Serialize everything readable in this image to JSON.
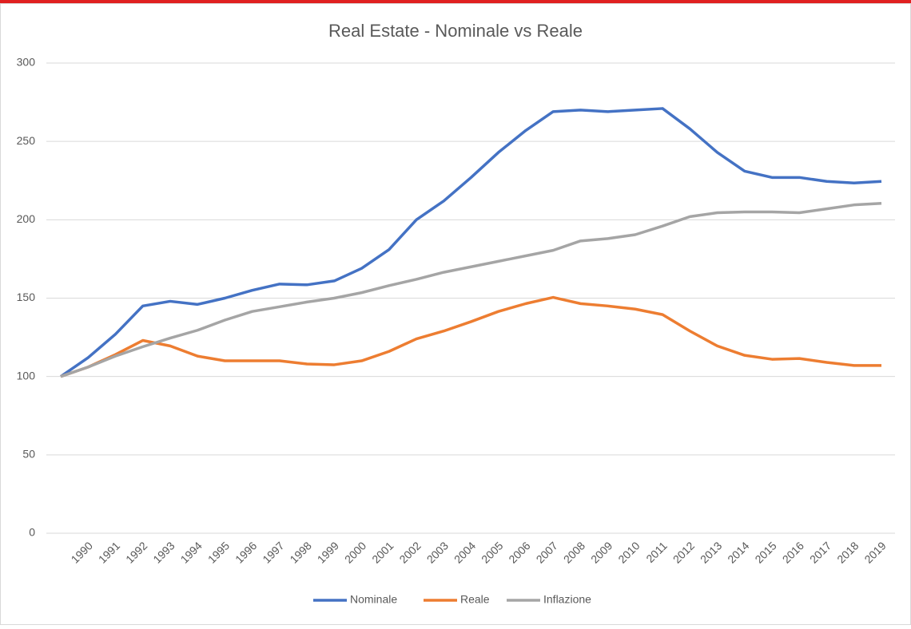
{
  "chart_data": {
    "type": "line",
    "title": "Real Estate - Nominale vs Reale",
    "categories": [
      null,
      "1990",
      "1991",
      "1992",
      "1993",
      "1994",
      "1995",
      "1996",
      "1997",
      "1998",
      "1999",
      "2000",
      "2001",
      "2002",
      "2003",
      "2004",
      "2005",
      "2006",
      "2007",
      "2008",
      "2009",
      "2010",
      "2011",
      "2012",
      "2013",
      "2014",
      "2015",
      "2016",
      "2017",
      "2018",
      "2019"
    ],
    "series": [
      {
        "name": "Nominale",
        "color": "#4472c4",
        "values": [
          100,
          112,
          127,
          145,
          148,
          146,
          150,
          155,
          159,
          158.5,
          161,
          169,
          181,
          200,
          212,
          227,
          243,
          257,
          269,
          270,
          269,
          270,
          271,
          258,
          243,
          231,
          227,
          227,
          224.5,
          223.5,
          224.5
        ]
      },
      {
        "name": "Reale",
        "color": "#ed7d31",
        "values": [
          100,
          106,
          114,
          123,
          119.5,
          113,
          110,
          110,
          110,
          108,
          107.5,
          110,
          116,
          124,
          129,
          135,
          141.5,
          146.5,
          150.5,
          146.5,
          145,
          143,
          139.5,
          129,
          119.5,
          113.5,
          111,
          111.5,
          109,
          107,
          107
        ]
      },
      {
        "name": "Inflazione",
        "color": "#a5a5a5",
        "values": [
          100,
          106,
          113,
          119,
          124.5,
          129.5,
          136,
          141.5,
          144.5,
          147.5,
          150,
          153.5,
          158,
          162,
          166.5,
          170,
          173.5,
          177,
          180.5,
          186.5,
          188,
          190.5,
          196,
          202,
          204.5,
          205,
          205,
          204.5,
          207,
          209.5,
          210.5
        ]
      }
    ],
    "ylim": [
      0,
      300
    ],
    "yticks": [
      0,
      50,
      100,
      150,
      200,
      250,
      300
    ],
    "grid": true,
    "legend": "bottom"
  }
}
